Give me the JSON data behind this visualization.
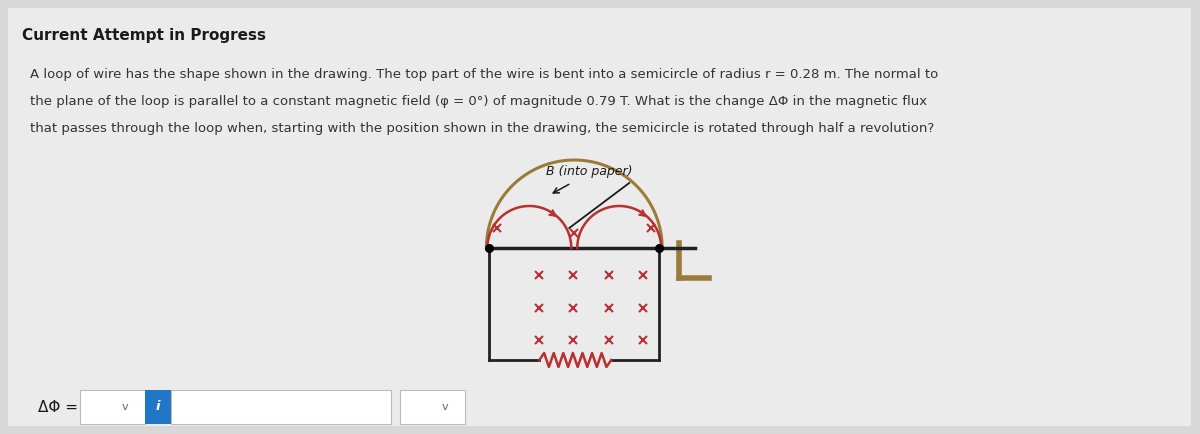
{
  "title": "Current Attempt in Progress",
  "line1": "A loop of wire has the shape shown in the drawing. The top part of the wire is bent into a semicircle of radius r = 0.28 m. The normal to",
  "line2": "the plane of the loop is parallel to a constant magnetic field (φ = 0°) of magnitude 0.79 T. What is the change ΔΦ in the magnetic flux",
  "line3": "that passes through the loop when, starting with the position shown in the drawing, the semicircle is rotated through half a revolution?",
  "b_label": "B (into paper)",
  "delta_phi_label": "ΔΦ =",
  "bg_color": "#d8d8d8",
  "panel_color": "#ebebeb",
  "white_color": "#ffffff",
  "dark_color": "#1a1a1a",
  "wire_color": "#222222",
  "red_color": "#b83030",
  "brown_color": "#9B7B3A",
  "blue_color": "#2176C7",
  "cross_color": "#b83030",
  "text_color": "#333333"
}
